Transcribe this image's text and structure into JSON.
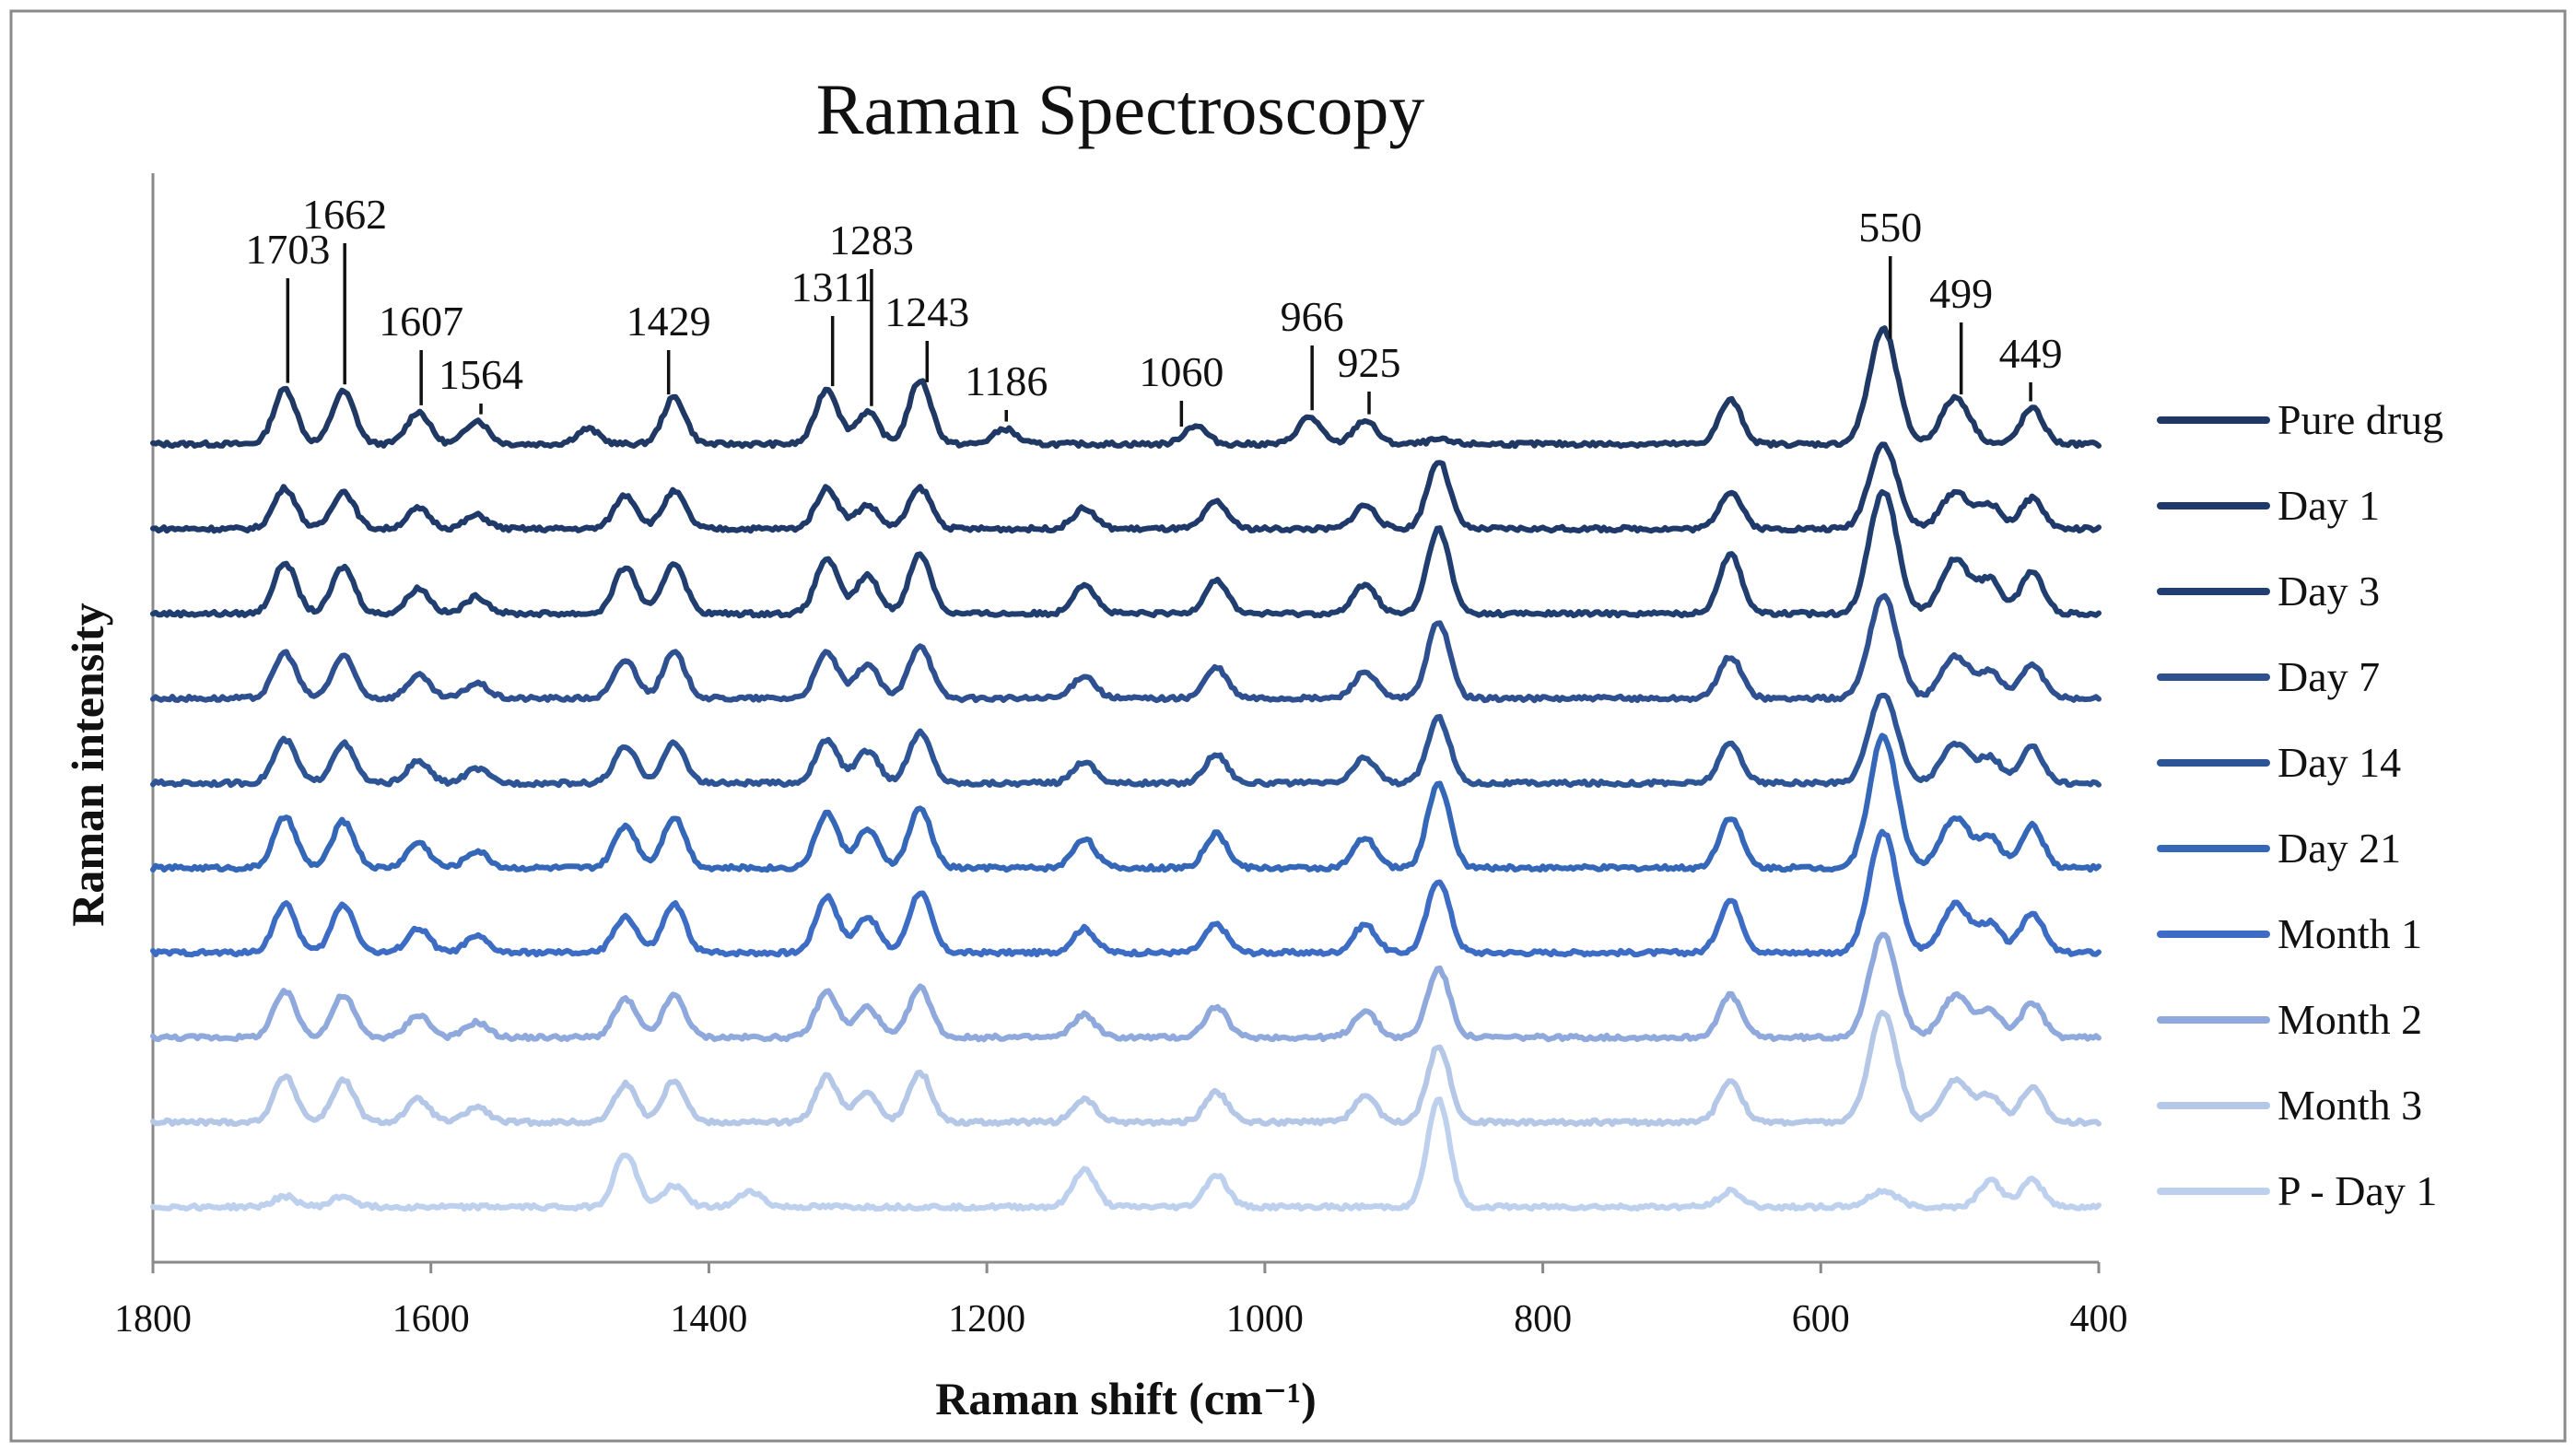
{
  "chart_data": {
    "type": "line",
    "title": "Raman Spectroscopy",
    "xlabel": "Raman shift (cm⁻¹)",
    "ylabel": "Raman intensity",
    "xlim": [
      1800,
      400
    ],
    "x_reversed": true,
    "x_ticks": [
      1800,
      1600,
      1400,
      1200,
      1000,
      800,
      600,
      400
    ],
    "y_ticks_visible": false,
    "grid": false,
    "legend_position": "right",
    "peaks": [
      {
        "x": 1703,
        "label": "1703"
      },
      {
        "x": 1662,
        "label": "1662"
      },
      {
        "x": 1607,
        "label": "1607"
      },
      {
        "x": 1564,
        "label": "1564"
      },
      {
        "x": 1429,
        "label": "1429"
      },
      {
        "x": 1311,
        "label": "1311"
      },
      {
        "x": 1283,
        "label": "1283"
      },
      {
        "x": 1243,
        "label": "1243"
      },
      {
        "x": 1186,
        "label": "1186"
      },
      {
        "x": 1060,
        "label": "1060"
      },
      {
        "x": 966,
        "label": "966"
      },
      {
        "x": 925,
        "label": "925"
      },
      {
        "x": 550,
        "label": "550"
      },
      {
        "x": 499,
        "label": "499"
      },
      {
        "x": 449,
        "label": "449"
      }
    ],
    "series": [
      {
        "name": "Pure drug",
        "color": "#1f3864",
        "offset": 9.0,
        "scale": 1.0,
        "bump": 0.0,
        "points": [
          [
            1705,
            0.65
          ],
          [
            1663,
            0.62
          ],
          [
            1609,
            0.38
          ],
          [
            1567,
            0.28
          ],
          [
            1487,
            0.18
          ],
          [
            1425,
            0.55
          ],
          [
            1315,
            0.65
          ],
          [
            1286,
            0.38
          ],
          [
            1248,
            0.75
          ],
          [
            1187,
            0.18
          ],
          [
            1050,
            0.22
          ],
          [
            968,
            0.32
          ],
          [
            928,
            0.28
          ],
          [
            875,
            0.05
          ],
          [
            665,
            0.52
          ],
          [
            555,
            1.35
          ],
          [
            503,
            0.55
          ],
          [
            448,
            0.42
          ]
        ]
      },
      {
        "name": "Day 1",
        "color": "#1f3a6a",
        "offset": 8.0,
        "scale": 0.35,
        "bump": 0.45,
        "points": [
          [
            1705,
            0.6
          ],
          [
            1663,
            0.55
          ],
          [
            1609,
            0.3
          ],
          [
            1567,
            0.2
          ],
          [
            1460,
            0.5
          ],
          [
            1425,
            0.55
          ],
          [
            1315,
            0.6
          ],
          [
            1286,
            0.35
          ],
          [
            1248,
            0.6
          ],
          [
            1130,
            0.3
          ],
          [
            1035,
            0.4
          ],
          [
            928,
            0.35
          ],
          [
            875,
            1.0
          ],
          [
            665,
            0.55
          ],
          [
            555,
            1.25
          ],
          [
            503,
            0.55
          ],
          [
            478,
            0.35
          ],
          [
            448,
            0.45
          ]
        ]
      },
      {
        "name": "Day 3",
        "color": "#203f70",
        "offset": 7.0,
        "scale": 0.6,
        "bump": 0.4,
        "points": [
          [
            1705,
            0.6
          ],
          [
            1663,
            0.55
          ],
          [
            1609,
            0.3
          ],
          [
            1567,
            0.2
          ],
          [
            1460,
            0.55
          ],
          [
            1425,
            0.6
          ],
          [
            1315,
            0.65
          ],
          [
            1286,
            0.45
          ],
          [
            1248,
            0.7
          ],
          [
            1130,
            0.35
          ],
          [
            1035,
            0.4
          ],
          [
            928,
            0.35
          ],
          [
            875,
            1.0
          ],
          [
            665,
            0.7
          ],
          [
            555,
            1.45
          ],
          [
            503,
            0.65
          ],
          [
            478,
            0.4
          ],
          [
            448,
            0.5
          ]
        ]
      },
      {
        "name": "Day 7",
        "color": "#2e5090",
        "offset": 6.0,
        "scale": 0.45,
        "bump": 0.45,
        "points": [
          [
            1705,
            0.6
          ],
          [
            1663,
            0.55
          ],
          [
            1609,
            0.3
          ],
          [
            1567,
            0.2
          ],
          [
            1460,
            0.5
          ],
          [
            1425,
            0.6
          ],
          [
            1315,
            0.6
          ],
          [
            1286,
            0.45
          ],
          [
            1248,
            0.7
          ],
          [
            1130,
            0.3
          ],
          [
            1035,
            0.4
          ],
          [
            928,
            0.35
          ],
          [
            875,
            1.0
          ],
          [
            665,
            0.55
          ],
          [
            555,
            1.35
          ],
          [
            503,
            0.55
          ],
          [
            478,
            0.35
          ],
          [
            448,
            0.45
          ]
        ]
      },
      {
        "name": "Day 14",
        "color": "#2d5596",
        "offset": 5.0,
        "scale": 0.4,
        "bump": 0.45,
        "points": [
          [
            1705,
            0.6
          ],
          [
            1663,
            0.55
          ],
          [
            1609,
            0.3
          ],
          [
            1567,
            0.2
          ],
          [
            1460,
            0.5
          ],
          [
            1425,
            0.55
          ],
          [
            1315,
            0.6
          ],
          [
            1286,
            0.45
          ],
          [
            1248,
            0.7
          ],
          [
            1130,
            0.3
          ],
          [
            1035,
            0.4
          ],
          [
            928,
            0.35
          ],
          [
            875,
            0.9
          ],
          [
            665,
            0.55
          ],
          [
            555,
            1.25
          ],
          [
            503,
            0.55
          ],
          [
            478,
            0.35
          ],
          [
            448,
            0.5
          ]
        ]
      },
      {
        "name": "Day 21",
        "color": "#3567b8",
        "offset": 4.0,
        "scale": 0.6,
        "bump": 0.4,
        "points": [
          [
            1705,
            0.6
          ],
          [
            1663,
            0.55
          ],
          [
            1609,
            0.3
          ],
          [
            1567,
            0.2
          ],
          [
            1460,
            0.5
          ],
          [
            1425,
            0.6
          ],
          [
            1315,
            0.65
          ],
          [
            1286,
            0.45
          ],
          [
            1248,
            0.7
          ],
          [
            1130,
            0.35
          ],
          [
            1035,
            0.4
          ],
          [
            928,
            0.35
          ],
          [
            875,
            1.0
          ],
          [
            665,
            0.6
          ],
          [
            555,
            1.55
          ],
          [
            503,
            0.6
          ],
          [
            478,
            0.35
          ],
          [
            448,
            0.5
          ]
        ]
      },
      {
        "name": "Month 1",
        "color": "#3d6cc4",
        "offset": 3.0,
        "scale": 0.6,
        "bump": 0.35,
        "points": [
          [
            1705,
            0.6
          ],
          [
            1663,
            0.6
          ],
          [
            1609,
            0.3
          ],
          [
            1567,
            0.2
          ],
          [
            1460,
            0.45
          ],
          [
            1425,
            0.6
          ],
          [
            1315,
            0.7
          ],
          [
            1286,
            0.45
          ],
          [
            1248,
            0.75
          ],
          [
            1130,
            0.3
          ],
          [
            1035,
            0.35
          ],
          [
            928,
            0.35
          ],
          [
            875,
            0.9
          ],
          [
            665,
            0.65
          ],
          [
            555,
            1.5
          ],
          [
            503,
            0.6
          ],
          [
            478,
            0.35
          ],
          [
            448,
            0.5
          ]
        ]
      },
      {
        "name": "Month 2",
        "color": "#8fa9dc",
        "offset": 2.0,
        "scale": 0.45,
        "bump": 0.45,
        "points": [
          [
            1705,
            0.6
          ],
          [
            1663,
            0.55
          ],
          [
            1609,
            0.3
          ],
          [
            1567,
            0.2
          ],
          [
            1460,
            0.5
          ],
          [
            1425,
            0.55
          ],
          [
            1315,
            0.6
          ],
          [
            1286,
            0.4
          ],
          [
            1248,
            0.65
          ],
          [
            1130,
            0.3
          ],
          [
            1035,
            0.4
          ],
          [
            928,
            0.35
          ],
          [
            875,
            0.9
          ],
          [
            665,
            0.55
          ],
          [
            555,
            1.35
          ],
          [
            503,
            0.55
          ],
          [
            478,
            0.35
          ],
          [
            448,
            0.45
          ]
        ]
      },
      {
        "name": "Month 3",
        "color": "#b4c7e7",
        "offset": 1.0,
        "scale": 0.45,
        "bump": 0.45,
        "points": [
          [
            1705,
            0.6
          ],
          [
            1663,
            0.55
          ],
          [
            1609,
            0.3
          ],
          [
            1567,
            0.2
          ],
          [
            1460,
            0.5
          ],
          [
            1425,
            0.55
          ],
          [
            1315,
            0.6
          ],
          [
            1286,
            0.4
          ],
          [
            1248,
            0.65
          ],
          [
            1130,
            0.3
          ],
          [
            1035,
            0.4
          ],
          [
            928,
            0.35
          ],
          [
            875,
            1.0
          ],
          [
            665,
            0.55
          ],
          [
            555,
            1.45
          ],
          [
            503,
            0.55
          ],
          [
            478,
            0.35
          ],
          [
            448,
            0.45
          ]
        ]
      },
      {
        "name": "P - Day 1",
        "color": "#bdd0ee",
        "offset": 0.0,
        "scale": 0.08,
        "bump": 0.55,
        "points": [
          [
            1705,
            0.2
          ],
          [
            1663,
            0.2
          ],
          [
            1460,
            1.0
          ],
          [
            1425,
            0.4
          ],
          [
            1370,
            0.3
          ],
          [
            1130,
            0.7
          ],
          [
            1035,
            0.6
          ],
          [
            875,
            2.0
          ],
          [
            665,
            0.3
          ],
          [
            555,
            0.3
          ],
          [
            478,
            0.5
          ],
          [
            448,
            0.5
          ]
        ]
      }
    ]
  }
}
